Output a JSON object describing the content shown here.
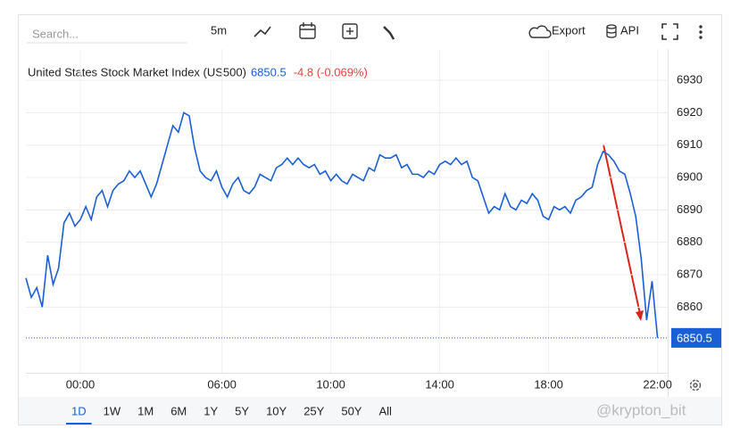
{
  "toolbar": {
    "search_placeholder": "Search...",
    "interval": "5m",
    "export": "Export",
    "api": "API"
  },
  "chart_data": {
    "type": "line",
    "title": "United States Stock Market Index (US500)",
    "last_price": 6850.5,
    "change_label": "-4.8 (-0.069%)",
    "color": "#1a5fd6",
    "values": [
      6869,
      6863,
      6866,
      6860,
      6876,
      6867,
      6872,
      6886,
      6889,
      6885,
      6887,
      6891,
      6887,
      6894,
      6896,
      6891,
      6896,
      6898,
      6899,
      6902,
      6900,
      6902,
      6898,
      6894,
      6898,
      6904,
      6910,
      6916,
      6914,
      6920,
      6919,
      6909,
      6902,
      6900,
      6899,
      6902,
      6897,
      6894,
      6898,
      6900,
      6896,
      6895,
      6897,
      6901,
      6900,
      6899,
      6903,
      6904,
      6906,
      6904,
      6906,
      6904,
      6903,
      6904,
      6901,
      6902,
      6899,
      6901,
      6899,
      6898,
      6901,
      6900,
      6899,
      6903,
      6902,
      6907,
      6906,
      6906,
      6907,
      6903,
      6904,
      6901,
      6901,
      6900,
      6902,
      6901,
      6904,
      6905,
      6904,
      6906,
      6904,
      6905,
      6900,
      6899,
      6894,
      6889,
      6891,
      6890,
      6895,
      6891,
      6890,
      6893,
      6892,
      6895,
      6893,
      6888,
      6887,
      6891,
      6890,
      6891,
      6889,
      6893,
      6894,
      6896,
      6897,
      6904,
      6908,
      6907,
      6905,
      6902,
      6901,
      6895,
      6888,
      6875,
      6856,
      6868,
      6850.5
    ],
    "xlim": [
      0,
      118
    ],
    "xticks": [
      {
        "value": 10,
        "label": "00:00"
      },
      {
        "value": 36,
        "label": "06:00"
      },
      {
        "value": 56,
        "label": "10:00"
      },
      {
        "value": 76,
        "label": "14:00"
      },
      {
        "value": 96,
        "label": "18:00"
      },
      {
        "value": 116,
        "label": "22:00"
      }
    ],
    "ylim": [
      6840,
      6940
    ],
    "yticks": [
      6860,
      6870,
      6880,
      6890,
      6900,
      6910,
      6920,
      6930
    ],
    "grid": true
  },
  "range_buttons": [
    "1D",
    "1W",
    "1M",
    "6M",
    "1Y",
    "5Y",
    "10Y",
    "25Y",
    "50Y",
    "All"
  ],
  "watermark": "@krypton_bit"
}
